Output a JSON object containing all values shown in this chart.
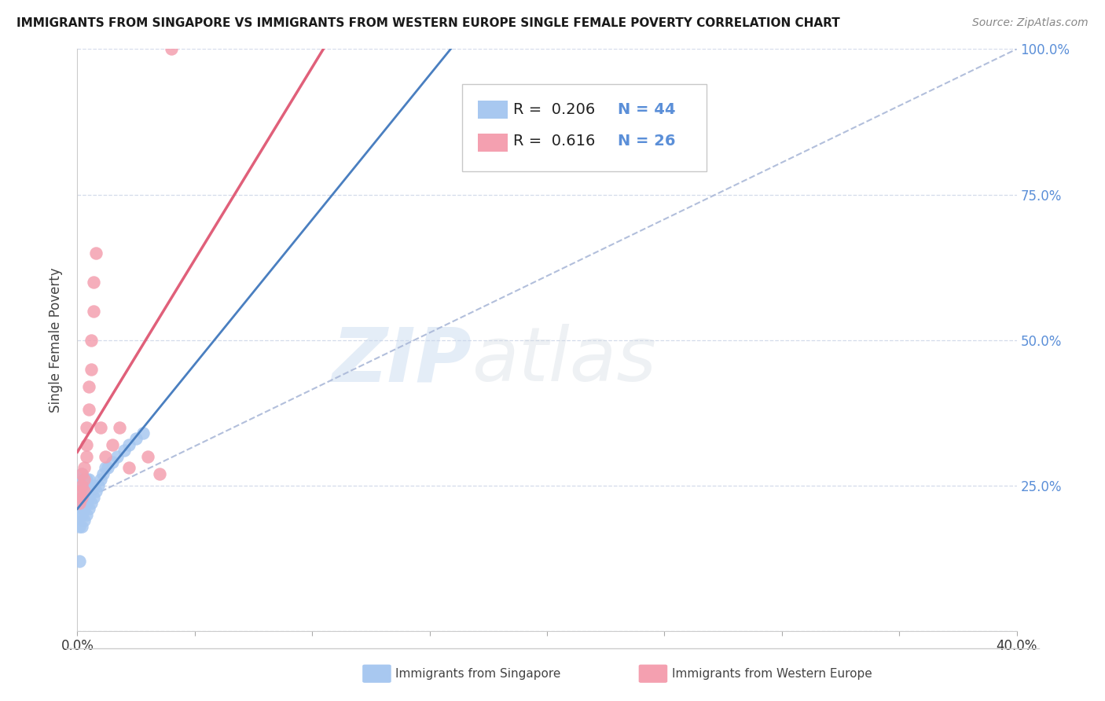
{
  "title": "IMMIGRANTS FROM SINGAPORE VS IMMIGRANTS FROM WESTERN EUROPE SINGLE FEMALE POVERTY CORRELATION CHART",
  "source_text": "Source: ZipAtlas.com",
  "ylabel": "Single Female Poverty",
  "xlim": [
    0.0,
    0.4
  ],
  "ylim": [
    0.0,
    1.0
  ],
  "watermark_zip": "ZIP",
  "watermark_atlas": "atlas",
  "legend_r1": "R =  0.206",
  "legend_n1": "N = 44",
  "legend_r2": "R =  0.616",
  "legend_n2": "N = 26",
  "series1_color": "#a8c8f0",
  "series2_color": "#f4a0b0",
  "line1_color": "#4a7fc0",
  "line2_color": "#e0607a",
  "ref_line_color": "#aab8d8",
  "grid_color": "#d0d8e8",
  "background_color": "#ffffff",
  "ytick_color": "#5b8fd8",
  "singapore_x": [
    0.001,
    0.001,
    0.001,
    0.001,
    0.001,
    0.002,
    0.002,
    0.002,
    0.002,
    0.002,
    0.002,
    0.002,
    0.003,
    0.003,
    0.003,
    0.003,
    0.003,
    0.003,
    0.004,
    0.004,
    0.004,
    0.004,
    0.004,
    0.005,
    0.005,
    0.005,
    0.005,
    0.006,
    0.006,
    0.007,
    0.007,
    0.008,
    0.009,
    0.01,
    0.011,
    0.012,
    0.013,
    0.015,
    0.017,
    0.02,
    0.022,
    0.025,
    0.028,
    0.001
  ],
  "singapore_y": [
    0.18,
    0.2,
    0.22,
    0.24,
    0.26,
    0.18,
    0.2,
    0.22,
    0.23,
    0.24,
    0.25,
    0.27,
    0.19,
    0.21,
    0.22,
    0.24,
    0.25,
    0.26,
    0.2,
    0.22,
    0.23,
    0.25,
    0.26,
    0.21,
    0.23,
    0.24,
    0.26,
    0.22,
    0.24,
    0.23,
    0.25,
    0.24,
    0.25,
    0.26,
    0.27,
    0.28,
    0.28,
    0.29,
    0.3,
    0.31,
    0.32,
    0.33,
    0.34,
    0.12
  ],
  "western_europe_x": [
    0.001,
    0.001,
    0.002,
    0.002,
    0.002,
    0.003,
    0.003,
    0.003,
    0.004,
    0.004,
    0.004,
    0.005,
    0.005,
    0.006,
    0.006,
    0.007,
    0.007,
    0.008,
    0.01,
    0.012,
    0.015,
    0.018,
    0.022,
    0.03,
    0.035,
    0.04
  ],
  "western_europe_y": [
    0.22,
    0.24,
    0.23,
    0.25,
    0.27,
    0.24,
    0.26,
    0.28,
    0.3,
    0.32,
    0.35,
    0.38,
    0.42,
    0.45,
    0.5,
    0.55,
    0.6,
    0.65,
    0.35,
    0.3,
    0.32,
    0.35,
    0.28,
    0.3,
    0.27,
    1.0
  ]
}
